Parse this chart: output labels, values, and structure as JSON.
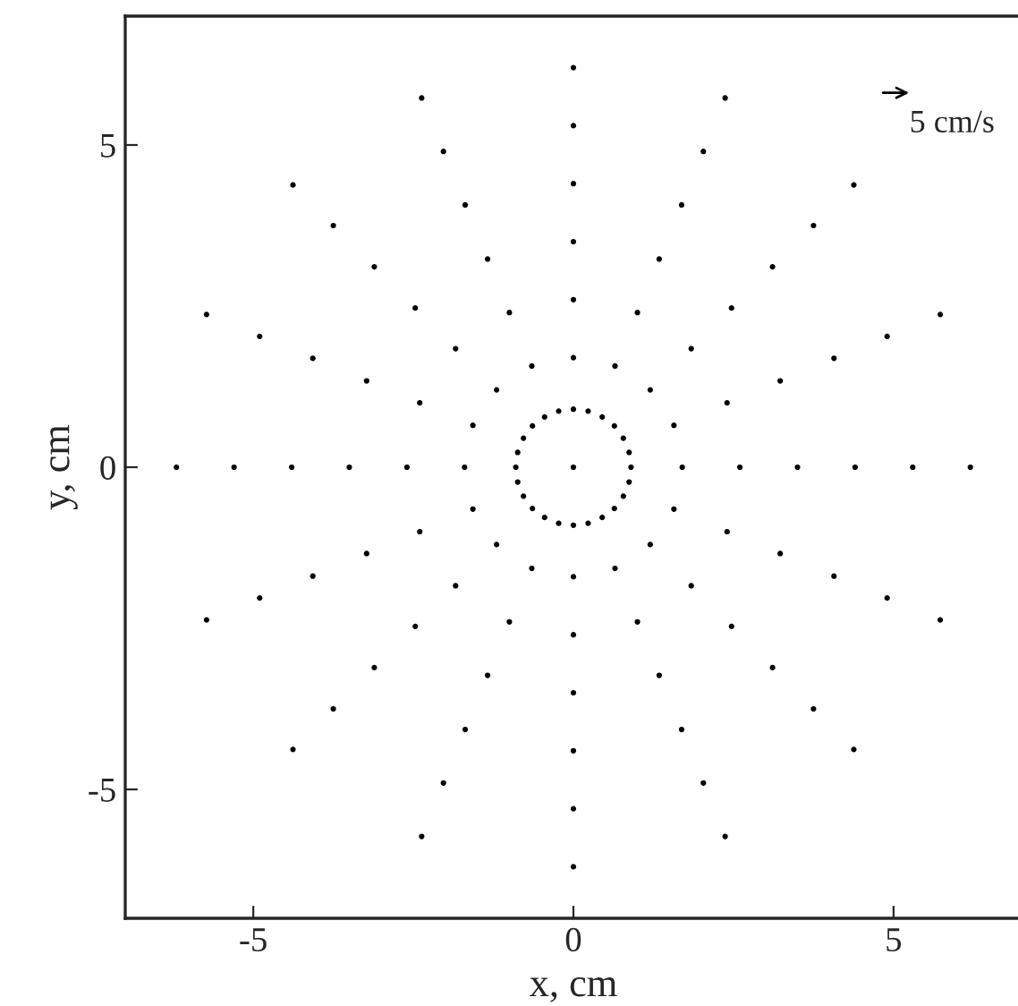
{
  "chart_data": {
    "type": "scatter",
    "xlabel": "x, cm",
    "ylabel": "y, cm",
    "xlim": [
      -7,
      7
    ],
    "ylim": [
      -7,
      7
    ],
    "xticks": [
      -5,
      0,
      5
    ],
    "yticks": [
      -5,
      0,
      5
    ],
    "grid": false,
    "marker": "circle",
    "annotations": [
      "5 cm/s"
    ],
    "series": [
      {
        "color": "#000000",
        "x": [
          0,
          0.9,
          0.87,
          0.78,
          0.64,
          0.45,
          0.23,
          0,
          -0.23,
          -0.45,
          -0.64,
          -0.78,
          -0.87,
          -0.9,
          -0.87,
          -0.78,
          -0.64,
          -0.45,
          -0.23,
          0,
          0.23,
          0.45,
          0.64,
          0.78,
          0.87,
          1.7,
          2.6,
          3.5,
          4.4,
          5.3,
          6.2,
          1.57,
          2.4,
          3.23,
          4.07,
          4.9,
          5.73,
          1.2,
          1.84,
          2.47,
          3.11,
          3.75,
          4.38,
          0.65,
          1.0,
          1.34,
          1.69,
          2.03,
          2.37,
          0,
          0,
          0,
          0,
          0,
          0,
          -0.65,
          -1.0,
          -1.34,
          -1.69,
          -2.03,
          -2.37,
          -1.2,
          -1.84,
          -2.47,
          -3.11,
          -3.75,
          -4.38,
          -1.57,
          -2.4,
          -3.23,
          -4.07,
          -4.9,
          -5.73,
          -1.7,
          -2.6,
          -3.5,
          -4.4,
          -5.3,
          -6.2,
          -1.57,
          -2.4,
          -3.23,
          -4.07,
          -4.9,
          -5.73,
          -1.2,
          -1.84,
          -2.47,
          -3.11,
          -3.75,
          -4.38,
          -0.65,
          -1.0,
          -1.34,
          -1.69,
          -2.03,
          -2.37,
          0,
          0,
          0,
          0,
          0,
          0,
          0.65,
          1.0,
          1.34,
          1.69,
          2.03,
          2.37,
          1.2,
          1.84,
          2.47,
          3.11,
          3.75,
          4.38,
          1.57,
          2.4,
          3.23,
          4.07,
          4.9,
          5.73
        ],
        "values": [
          0,
          0,
          0.23,
          0.45,
          0.64,
          0.78,
          0.87,
          0.9,
          0.87,
          0.78,
          0.64,
          0.45,
          0.23,
          0,
          -0.23,
          -0.45,
          -0.64,
          -0.78,
          -0.87,
          -0.9,
          -0.87,
          -0.78,
          -0.64,
          -0.45,
          -0.23,
          0,
          0,
          0,
          0,
          0,
          0,
          0.65,
          1.0,
          1.34,
          1.69,
          2.03,
          2.37,
          1.2,
          1.84,
          2.47,
          3.11,
          3.75,
          4.38,
          1.57,
          2.4,
          3.23,
          4.07,
          4.9,
          5.73,
          1.7,
          2.6,
          3.5,
          4.4,
          5.3,
          6.2,
          1.57,
          2.4,
          3.23,
          4.07,
          4.9,
          5.73,
          1.2,
          1.84,
          2.47,
          3.11,
          3.75,
          4.38,
          0.65,
          1.0,
          1.34,
          1.69,
          2.03,
          2.37,
          0,
          0,
          0,
          0,
          0,
          0,
          -0.65,
          -1.0,
          -1.34,
          -1.69,
          -2.03,
          -2.37,
          -1.2,
          -1.84,
          -2.47,
          -3.11,
          -3.75,
          -4.38,
          -1.57,
          -2.4,
          -3.23,
          -4.07,
          -4.9,
          -5.73,
          -1.7,
          -2.6,
          -3.5,
          -4.4,
          -5.3,
          -6.2,
          -1.57,
          -2.4,
          -3.23,
          -4.07,
          -4.9,
          -5.73,
          -1.2,
          -1.84,
          -2.47,
          -3.11,
          -3.75,
          -4.38,
          -0.65,
          -1.0,
          -1.34,
          -1.69,
          -2.03,
          -2.37
        ]
      }
    ]
  }
}
